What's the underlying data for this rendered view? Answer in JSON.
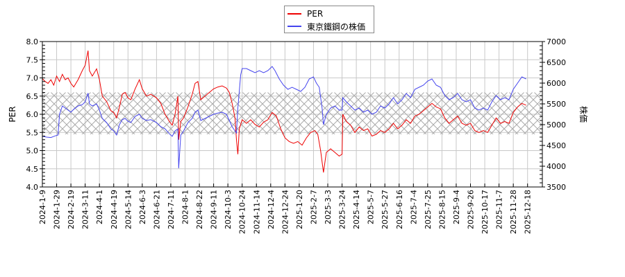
{
  "legend": {
    "items": [
      {
        "label": "PER",
        "color": "#ee0000"
      },
      {
        "label": "東京鐵鋼の株価",
        "color": "#4444ee"
      }
    ]
  },
  "chart_data": {
    "type": "line",
    "title": "",
    "xlabel": "",
    "ylabel": "PER",
    "ylabel_right": "株価",
    "ylim": [
      4.0,
      8.0
    ],
    "ylim_right": [
      3500,
      7000
    ],
    "yticks": [
      "4.0",
      "4.5",
      "5.0",
      "5.5",
      "6.0",
      "6.5",
      "7.0",
      "7.5",
      "8.0"
    ],
    "yticks_right": [
      "3500",
      "4000",
      "4500",
      "5000",
      "5500",
      "6000",
      "6500",
      "7000"
    ],
    "grid": true,
    "legend_position": "top-center",
    "band": {
      "description": "hatched PER range band",
      "low": 5.45,
      "high": 6.6
    },
    "categories": [
      "2024-1-9",
      "2024-1-29",
      "2024-2-19",
      "2024-3-11",
      "2024-4-1",
      "2024-4-19",
      "2024-5-14",
      "2024-6-3",
      "2024-6-21",
      "2024-7-11",
      "2024-8-1",
      "2024-8-22",
      "2024-9-11",
      "2024-10-3",
      "2024-10-24",
      "2024-11-14",
      "2024-12-4",
      "2024-12-24",
      "2025-1-20",
      "2025-2-7",
      "2025-3-3",
      "2025-3-24",
      "2025-4-14",
      "2025-5-7",
      "2025-5-27",
      "2025-6-16",
      "2025-7-4",
      "2025-7-25",
      "2025-8-15",
      "2025-9-4",
      "2025-9-26",
      "2025-10-17",
      "2025-11-7",
      "2025-11-28",
      "2025-12-18"
    ],
    "series": [
      {
        "name": "PER",
        "color": "#ee0000",
        "axis": "left",
        "points": [
          [
            0,
            6.98
          ],
          [
            0.2,
            6.9
          ],
          [
            0.4,
            6.85
          ],
          [
            0.6,
            6.95
          ],
          [
            0.8,
            6.8
          ],
          [
            1.0,
            7.05
          ],
          [
            1.2,
            6.9
          ],
          [
            1.4,
            7.1
          ],
          [
            1.6,
            6.95
          ],
          [
            1.8,
            7.0
          ],
          [
            2.0,
            6.85
          ],
          [
            2.2,
            6.75
          ],
          [
            2.5,
            6.95
          ],
          [
            2.8,
            7.2
          ],
          [
            3.0,
            7.35
          ],
          [
            3.1,
            7.55
          ],
          [
            3.2,
            7.75
          ],
          [
            3.3,
            7.2
          ],
          [
            3.5,
            7.05
          ],
          [
            3.8,
            7.25
          ],
          [
            4.0,
            6.95
          ],
          [
            4.2,
            6.5
          ],
          [
            4.5,
            6.35
          ],
          [
            4.8,
            6.1
          ],
          [
            5.0,
            6.05
          ],
          [
            5.2,
            5.9
          ],
          [
            5.4,
            6.2
          ],
          [
            5.6,
            6.55
          ],
          [
            5.8,
            6.6
          ],
          [
            6.0,
            6.45
          ],
          [
            6.2,
            6.4
          ],
          [
            6.5,
            6.7
          ],
          [
            6.8,
            6.95
          ],
          [
            7.0,
            6.7
          ],
          [
            7.3,
            6.5
          ],
          [
            7.6,
            6.55
          ],
          [
            8.0,
            6.45
          ],
          [
            8.3,
            6.3
          ],
          [
            8.6,
            6.0
          ],
          [
            8.9,
            5.8
          ],
          [
            9.1,
            5.7
          ],
          [
            9.3,
            6.0
          ],
          [
            9.5,
            6.5
          ],
          [
            9.55,
            5.3
          ],
          [
            9.7,
            5.8
          ],
          [
            9.9,
            5.9
          ],
          [
            10.2,
            6.2
          ],
          [
            10.5,
            6.55
          ],
          [
            10.7,
            6.85
          ],
          [
            10.9,
            6.9
          ],
          [
            11.1,
            6.4
          ],
          [
            11.4,
            6.5
          ],
          [
            11.7,
            6.6
          ],
          [
            12.0,
            6.7
          ],
          [
            12.3,
            6.75
          ],
          [
            12.6,
            6.78
          ],
          [
            12.9,
            6.72
          ],
          [
            13.1,
            6.6
          ],
          [
            13.3,
            6.3
          ],
          [
            13.5,
            5.9
          ],
          [
            13.6,
            5.3
          ],
          [
            13.7,
            4.9
          ],
          [
            13.8,
            5.6
          ],
          [
            14.0,
            5.85
          ],
          [
            14.3,
            5.75
          ],
          [
            14.6,
            5.85
          ],
          [
            14.9,
            5.72
          ],
          [
            15.2,
            5.65
          ],
          [
            15.5,
            5.78
          ],
          [
            15.8,
            5.85
          ],
          [
            16.1,
            6.05
          ],
          [
            16.4,
            5.95
          ],
          [
            16.7,
            5.6
          ],
          [
            17.0,
            5.35
          ],
          [
            17.3,
            5.25
          ],
          [
            17.6,
            5.2
          ],
          [
            17.9,
            5.25
          ],
          [
            18.2,
            5.15
          ],
          [
            18.5,
            5.35
          ],
          [
            18.8,
            5.5
          ],
          [
            19.1,
            5.55
          ],
          [
            19.3,
            5.45
          ],
          [
            19.5,
            5.0
          ],
          [
            19.7,
            4.4
          ],
          [
            19.9,
            4.95
          ],
          [
            20.2,
            5.05
          ],
          [
            20.5,
            4.95
          ],
          [
            20.8,
            4.85
          ],
          [
            21.0,
            4.9
          ],
          [
            21.05,
            6.0
          ],
          [
            21.3,
            5.8
          ],
          [
            21.6,
            5.7
          ],
          [
            21.9,
            5.5
          ],
          [
            22.2,
            5.65
          ],
          [
            22.5,
            5.55
          ],
          [
            22.8,
            5.6
          ],
          [
            23.1,
            5.4
          ],
          [
            23.4,
            5.45
          ],
          [
            23.7,
            5.55
          ],
          [
            24.0,
            5.5
          ],
          [
            24.3,
            5.6
          ],
          [
            24.6,
            5.75
          ],
          [
            24.9,
            5.6
          ],
          [
            25.2,
            5.7
          ],
          [
            25.5,
            5.85
          ],
          [
            25.8,
            5.75
          ],
          [
            26.1,
            5.95
          ],
          [
            26.4,
            6.0
          ],
          [
            26.7,
            6.1
          ],
          [
            27.0,
            6.2
          ],
          [
            27.3,
            6.3
          ],
          [
            27.6,
            6.2
          ],
          [
            27.9,
            6.15
          ],
          [
            28.2,
            5.9
          ],
          [
            28.5,
            5.75
          ],
          [
            28.8,
            5.85
          ],
          [
            29.1,
            5.95
          ],
          [
            29.4,
            5.75
          ],
          [
            29.7,
            5.7
          ],
          [
            30.0,
            5.75
          ],
          [
            30.3,
            5.55
          ],
          [
            30.6,
            5.5
          ],
          [
            30.9,
            5.55
          ],
          [
            31.2,
            5.5
          ],
          [
            31.5,
            5.7
          ],
          [
            31.8,
            5.9
          ],
          [
            32.1,
            5.75
          ],
          [
            32.4,
            5.8
          ],
          [
            32.7,
            5.75
          ],
          [
            33.0,
            6.05
          ],
          [
            33.3,
            6.2
          ],
          [
            33.6,
            6.3
          ],
          [
            33.9,
            6.25
          ]
        ]
      },
      {
        "name": "東京鐵鋼の株価",
        "color": "#4444ee",
        "axis": "right",
        "points": [
          [
            0,
            4720
          ],
          [
            0.3,
            4700
          ],
          [
            0.6,
            4690
          ],
          [
            0.9,
            4730
          ],
          [
            1.1,
            4750
          ],
          [
            1.2,
            5250
          ],
          [
            1.4,
            5450
          ],
          [
            1.6,
            5400
          ],
          [
            1.8,
            5350
          ],
          [
            2.0,
            5300
          ],
          [
            2.2,
            5370
          ],
          [
            2.5,
            5450
          ],
          [
            2.8,
            5480
          ],
          [
            3.0,
            5550
          ],
          [
            3.1,
            5650
          ],
          [
            3.2,
            5760
          ],
          [
            3.3,
            5500
          ],
          [
            3.5,
            5450
          ],
          [
            3.8,
            5500
          ],
          [
            4.0,
            5350
          ],
          [
            4.2,
            5150
          ],
          [
            4.5,
            5050
          ],
          [
            4.8,
            4900
          ],
          [
            5.0,
            4850
          ],
          [
            5.2,
            4750
          ],
          [
            5.4,
            5000
          ],
          [
            5.6,
            5120
          ],
          [
            5.8,
            5150
          ],
          [
            6.0,
            5080
          ],
          [
            6.2,
            5050
          ],
          [
            6.5,
            5200
          ],
          [
            6.8,
            5250
          ],
          [
            7.0,
            5150
          ],
          [
            7.3,
            5100
          ],
          [
            7.6,
            5120
          ],
          [
            8.0,
            5050
          ],
          [
            8.3,
            4950
          ],
          [
            8.6,
            4900
          ],
          [
            8.9,
            4780
          ],
          [
            9.1,
            4720
          ],
          [
            9.3,
            4850
          ],
          [
            9.5,
            4900
          ],
          [
            9.55,
            3950
          ],
          [
            9.7,
            4750
          ],
          [
            9.9,
            4850
          ],
          [
            10.2,
            5050
          ],
          [
            10.5,
            5150
          ],
          [
            10.7,
            5300
          ],
          [
            10.9,
            5350
          ],
          [
            11.1,
            5100
          ],
          [
            11.4,
            5150
          ],
          [
            11.7,
            5200
          ],
          [
            12.0,
            5250
          ],
          [
            12.3,
            5280
          ],
          [
            12.6,
            5300
          ],
          [
            12.9,
            5250
          ],
          [
            13.1,
            5100
          ],
          [
            13.3,
            4950
          ],
          [
            13.5,
            4850
          ],
          [
            13.6,
            4800
          ],
          [
            13.7,
            5400
          ],
          [
            13.9,
            6200
          ],
          [
            14.0,
            6350
          ],
          [
            14.3,
            6350
          ],
          [
            14.6,
            6300
          ],
          [
            14.9,
            6250
          ],
          [
            15.2,
            6300
          ],
          [
            15.5,
            6250
          ],
          [
            15.8,
            6300
          ],
          [
            16.1,
            6400
          ],
          [
            16.3,
            6300
          ],
          [
            16.6,
            6100
          ],
          [
            16.9,
            5950
          ],
          [
            17.2,
            5850
          ],
          [
            17.5,
            5900
          ],
          [
            17.8,
            5850
          ],
          [
            18.1,
            5800
          ],
          [
            18.4,
            5900
          ],
          [
            18.7,
            6100
          ],
          [
            19.0,
            6150
          ],
          [
            19.2,
            6000
          ],
          [
            19.4,
            5900
          ],
          [
            19.6,
            5400
          ],
          [
            19.7,
            5000
          ],
          [
            19.9,
            5250
          ],
          [
            20.2,
            5400
          ],
          [
            20.5,
            5450
          ],
          [
            20.8,
            5350
          ],
          [
            21.0,
            5350
          ],
          [
            21.05,
            5650
          ],
          [
            21.3,
            5550
          ],
          [
            21.6,
            5450
          ],
          [
            21.9,
            5350
          ],
          [
            22.2,
            5400
          ],
          [
            22.5,
            5300
          ],
          [
            22.8,
            5350
          ],
          [
            23.1,
            5250
          ],
          [
            23.4,
            5300
          ],
          [
            23.7,
            5450
          ],
          [
            24.0,
            5400
          ],
          [
            24.3,
            5500
          ],
          [
            24.6,
            5650
          ],
          [
            24.9,
            5500
          ],
          [
            25.2,
            5600
          ],
          [
            25.5,
            5750
          ],
          [
            25.8,
            5650
          ],
          [
            26.1,
            5850
          ],
          [
            26.4,
            5900
          ],
          [
            26.7,
            5950
          ],
          [
            27.0,
            6050
          ],
          [
            27.3,
            6100
          ],
          [
            27.6,
            5950
          ],
          [
            27.9,
            5900
          ],
          [
            28.2,
            5700
          ],
          [
            28.5,
            5600
          ],
          [
            28.8,
            5650
          ],
          [
            29.1,
            5750
          ],
          [
            29.4,
            5600
          ],
          [
            29.7,
            5550
          ],
          [
            30.0,
            5600
          ],
          [
            30.3,
            5400
          ],
          [
            30.6,
            5350
          ],
          [
            30.9,
            5400
          ],
          [
            31.2,
            5350
          ],
          [
            31.5,
            5550
          ],
          [
            31.8,
            5700
          ],
          [
            32.1,
            5600
          ],
          [
            32.4,
            5650
          ],
          [
            32.7,
            5600
          ],
          [
            33.0,
            5850
          ],
          [
            33.3,
            6000
          ],
          [
            33.6,
            6150
          ],
          [
            33.9,
            6100
          ]
        ]
      }
    ]
  }
}
